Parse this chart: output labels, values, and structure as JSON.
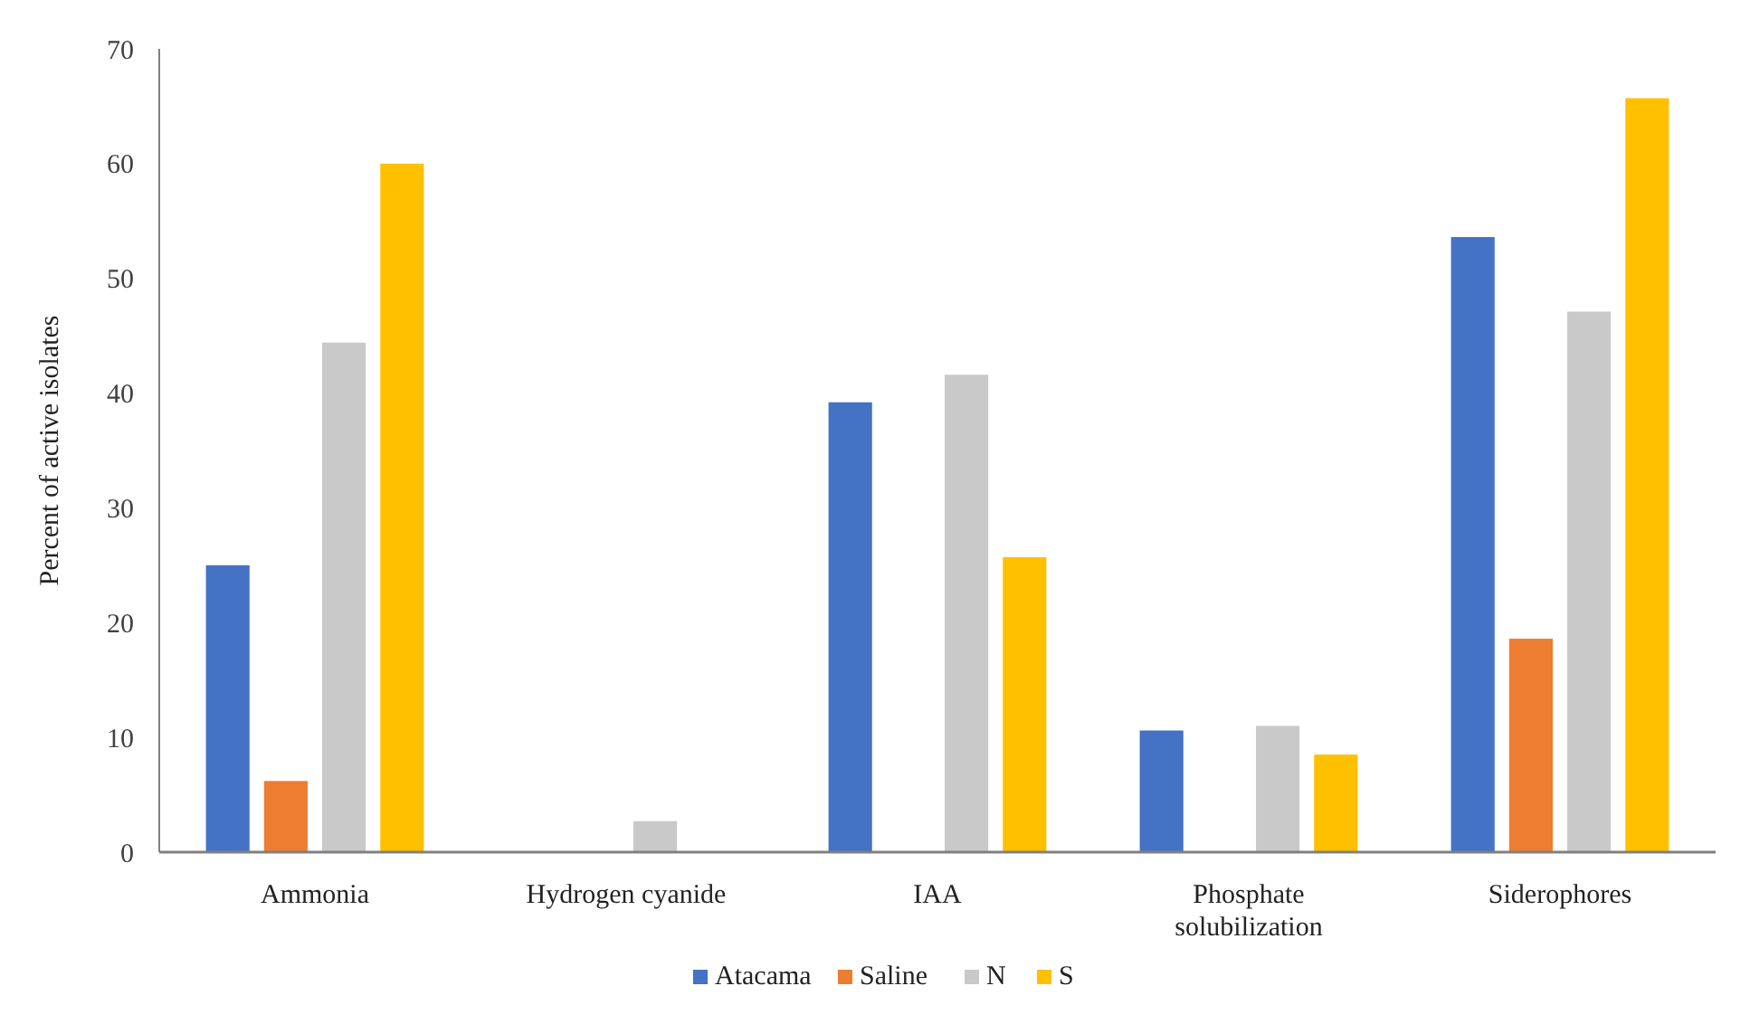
{
  "chart_data": {
    "type": "bar",
    "ylabel": "Percent of active isolates",
    "categories": [
      "Ammonia",
      "Hydrogen cyanide",
      "IAA",
      "Phosphate solubilization",
      "Siderophores"
    ],
    "series": [
      {
        "name": "Atacama",
        "color": "#4472c4",
        "values": [
          25,
          0,
          39.2,
          10.6,
          53.6
        ]
      },
      {
        "name": "Saline",
        "color": "#ed7d31",
        "values": [
          6.2,
          0,
          0,
          0,
          18.6
        ]
      },
      {
        "name": "N",
        "color": "#c9c9c9",
        "values": [
          44.4,
          2.7,
          41.6,
          11,
          47.1
        ]
      },
      {
        "name": "S",
        "color": "#ffc000",
        "values": [
          60,
          0,
          25.7,
          8.5,
          65.7
        ]
      }
    ],
    "ylim": [
      0,
      70
    ],
    "yticks": [
      0,
      10,
      20,
      30,
      40,
      50,
      60,
      70
    ],
    "grid": false,
    "legend": "bottom"
  }
}
